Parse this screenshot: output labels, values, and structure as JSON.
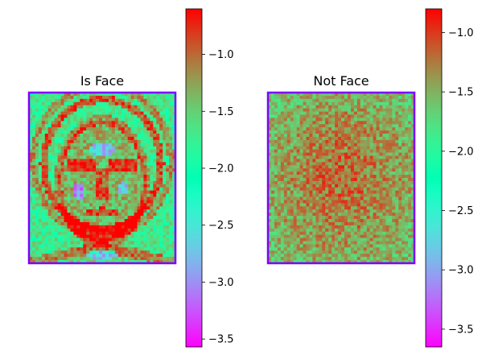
{
  "chart_data": [
    {
      "type": "heatmap",
      "title": "Is Face",
      "xlabel": "",
      "ylabel": "",
      "colormap": "rainbow",
      "grid": false,
      "axes_visible": false,
      "image_frame_color": "#7f00ff",
      "image_cells": {
        "cols": 46,
        "rows": 54
      },
      "description_of_content": "log-probability map showing an averaged face outline",
      "colorbar": {
        "vmin": -3.57,
        "vmax": -0.6,
        "ticks": [
          -1.0,
          -1.5,
          -2.0,
          -2.5,
          -3.0,
          -3.5
        ],
        "tick_labels": [
          "−1.0",
          "−1.5",
          "−2.0",
          "−2.5",
          "−3.0",
          "−3.5"
        ]
      }
    },
    {
      "type": "heatmap",
      "title": "Not Face",
      "xlabel": "",
      "ylabel": "",
      "colormap": "rainbow",
      "grid": false,
      "axes_visible": false,
      "image_frame_color": "#7f00ff",
      "image_cells": {
        "cols": 46,
        "rows": 54
      },
      "description_of_content": "noisy log-probability map, mostly high values",
      "colorbar": {
        "vmin": -3.65,
        "vmax": -0.8,
        "ticks": [
          -1.0,
          -1.5,
          -2.0,
          -2.5,
          -3.0,
          -3.5
        ],
        "tick_labels": [
          "−1.0",
          "−1.5",
          "−2.0",
          "−2.5",
          "−3.0",
          "−3.5"
        ]
      }
    }
  ]
}
